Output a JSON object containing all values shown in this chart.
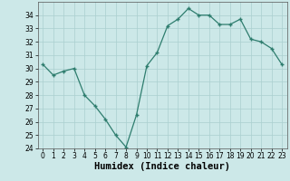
{
  "x": [
    0,
    1,
    2,
    3,
    4,
    5,
    6,
    7,
    8,
    9,
    10,
    11,
    12,
    13,
    14,
    15,
    16,
    17,
    18,
    19,
    20,
    21,
    22,
    23
  ],
  "y": [
    30.3,
    29.5,
    29.8,
    30.0,
    28.0,
    27.2,
    26.2,
    25.0,
    24.1,
    26.5,
    30.2,
    31.2,
    33.2,
    33.7,
    34.5,
    34.0,
    34.0,
    33.3,
    33.3,
    33.7,
    32.2,
    32.0,
    31.5,
    30.3
  ],
  "line_color": "#2e7d6e",
  "marker": "+",
  "marker_size": 3,
  "bg_color": "#cce8e8",
  "grid_color": "#aacfcf",
  "xlabel": "Humidex (Indice chaleur)",
  "ylim": [
    24,
    35
  ],
  "xlim": [
    -0.5,
    23.5
  ],
  "yticks": [
    24,
    25,
    26,
    27,
    28,
    29,
    30,
    31,
    32,
    33,
    34
  ],
  "xticks": [
    0,
    1,
    2,
    3,
    4,
    5,
    6,
    7,
    8,
    9,
    10,
    11,
    12,
    13,
    14,
    15,
    16,
    17,
    18,
    19,
    20,
    21,
    22,
    23
  ],
  "tick_fontsize": 5.5,
  "label_fontsize": 7.5
}
